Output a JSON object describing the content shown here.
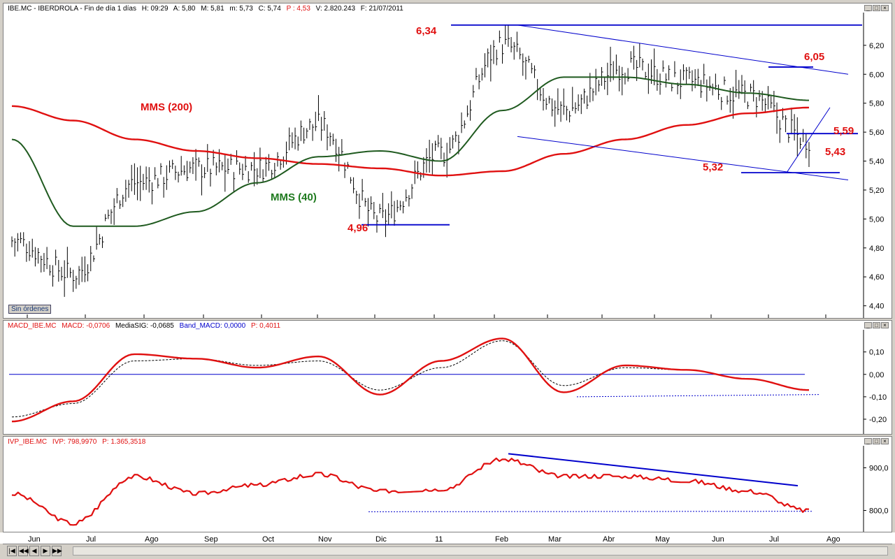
{
  "main_panel": {
    "title": {
      "symbol": "IBE.MC - IBERDROLA - Fin de día 1 días",
      "high": "H: 09:29",
      "open": "A: 5,80",
      "max": "M: 5,81",
      "min": "m: 5,73",
      "close": "C: 5,74",
      "percent": "P : 4,53",
      "volume": "V: 2.820.243",
      "date": "F: 21/07/2011"
    },
    "sin_ordenes": "Sin órdenes",
    "annotations": {
      "mms200": "MMS (200)",
      "mms40": "MMS (40)",
      "p634": "6,34",
      "p605": "6,05",
      "p559": "5,59",
      "p543": "5,43",
      "p532": "5,32",
      "p496": "4,96"
    },
    "y_ticks": [
      "6,20",
      "6,00",
      "5,80",
      "5,60",
      "5,40",
      "5,20",
      "5,00",
      "4,80",
      "4,60",
      "4,40"
    ]
  },
  "macd_panel": {
    "title": {
      "name": "MACD_IBE.MC",
      "macd": "MACD: -0,0706",
      "signal": "MediaSIG: -0,0685",
      "band": "Band_MACD: 0,0000",
      "percent": "P: 0,4011"
    },
    "y_ticks": [
      "0,10",
      "0,00",
      "-0,10",
      "-0,20"
    ]
  },
  "ivp_panel": {
    "title": {
      "name": "IVP_IBE.MC",
      "ivp": "IVP: 798,9970",
      "percent": "P: 1.365,3518"
    },
    "y_ticks": [
      "900,0",
      "800,0"
    ]
  },
  "x_axis": {
    "months": [
      "Jun",
      "Jul",
      "Ago",
      "Sep",
      "Oct",
      "Nov",
      "Dic",
      "11",
      "Feb",
      "Mar",
      "Abr",
      "May",
      "Jun",
      "Jul",
      "Ago"
    ]
  },
  "colors": {
    "price_bars": "#000000",
    "mms200": "#e01010",
    "mms40": "#1f5a1f",
    "trendline": "#0000cc",
    "label_red": "#e01010",
    "label_green": "#1f7a1f",
    "macd": "#e01010",
    "signal": "#000000",
    "ivp": "#e01010"
  },
  "chart_data": [
    {
      "type": "line",
      "panel": "price",
      "title": "IBE.MC - IBERDROLA",
      "x": [
        "Jun",
        "Jul",
        "Ago",
        "Sep",
        "Oct",
        "Nov",
        "Dic",
        "11",
        "Feb",
        "Mar",
        "Abr",
        "May",
        "Jun",
        "Jul"
      ],
      "series": [
        {
          "name": "Precio",
          "values": [
            4.85,
            4.62,
            5.25,
            5.35,
            5.35,
            5.65,
            5.0,
            5.45,
            6.2,
            5.75,
            6.05,
            5.95,
            5.85,
            5.55
          ]
        },
        {
          "name": "MMS (200)",
          "values": [
            5.78,
            5.68,
            5.55,
            5.47,
            5.42,
            5.38,
            5.35,
            5.3,
            5.33,
            5.45,
            5.55,
            5.65,
            5.73,
            5.77
          ]
        },
        {
          "name": "MMS (40)",
          "values": [
            5.55,
            4.95,
            4.95,
            5.05,
            5.25,
            5.43,
            5.47,
            5.4,
            5.75,
            5.98,
            5.98,
            5.93,
            5.87,
            5.82
          ]
        }
      ],
      "annotations": [
        "6,34",
        "6,05",
        "5,59",
        "5,43",
        "5,32",
        "4,96",
        "MMS (200)",
        "MMS (40)"
      ],
      "ylim": [
        4.35,
        6.32
      ]
    },
    {
      "type": "line",
      "panel": "macd",
      "title": "MACD_IBE.MC",
      "x": [
        "Jun",
        "Jul",
        "Ago",
        "Sep",
        "Oct",
        "Nov",
        "Dic",
        "11",
        "Feb",
        "Mar",
        "Abr",
        "May",
        "Jun",
        "Jul"
      ],
      "series": [
        {
          "name": "MACD",
          "values": [
            -0.21,
            -0.12,
            0.09,
            0.07,
            0.03,
            0.08,
            -0.09,
            0.06,
            0.16,
            -0.08,
            0.04,
            0.02,
            -0.02,
            -0.07
          ]
        },
        {
          "name": "MediaSIG",
          "values": [
            -0.19,
            -0.13,
            0.06,
            0.07,
            0.04,
            0.06,
            -0.07,
            0.03,
            0.15,
            -0.05,
            0.03,
            0.02,
            -0.02,
            -0.07
          ]
        }
      ],
      "ylim": [
        -0.25,
        0.18
      ]
    },
    {
      "type": "line",
      "panel": "ivp",
      "title": "IVP_IBE.MC",
      "x": [
        "Jun",
        "Jul",
        "Ago",
        "Sep",
        "Oct",
        "Nov",
        "Dic",
        "11",
        "Feb",
        "Mar",
        "Abr",
        "May",
        "Jun",
        "Jul"
      ],
      "series": [
        {
          "name": "IVP",
          "values": [
            840,
            770,
            880,
            840,
            860,
            885,
            845,
            850,
            920,
            880,
            880,
            870,
            845,
            799
          ]
        }
      ],
      "ylim": [
        755,
        945
      ]
    }
  ]
}
